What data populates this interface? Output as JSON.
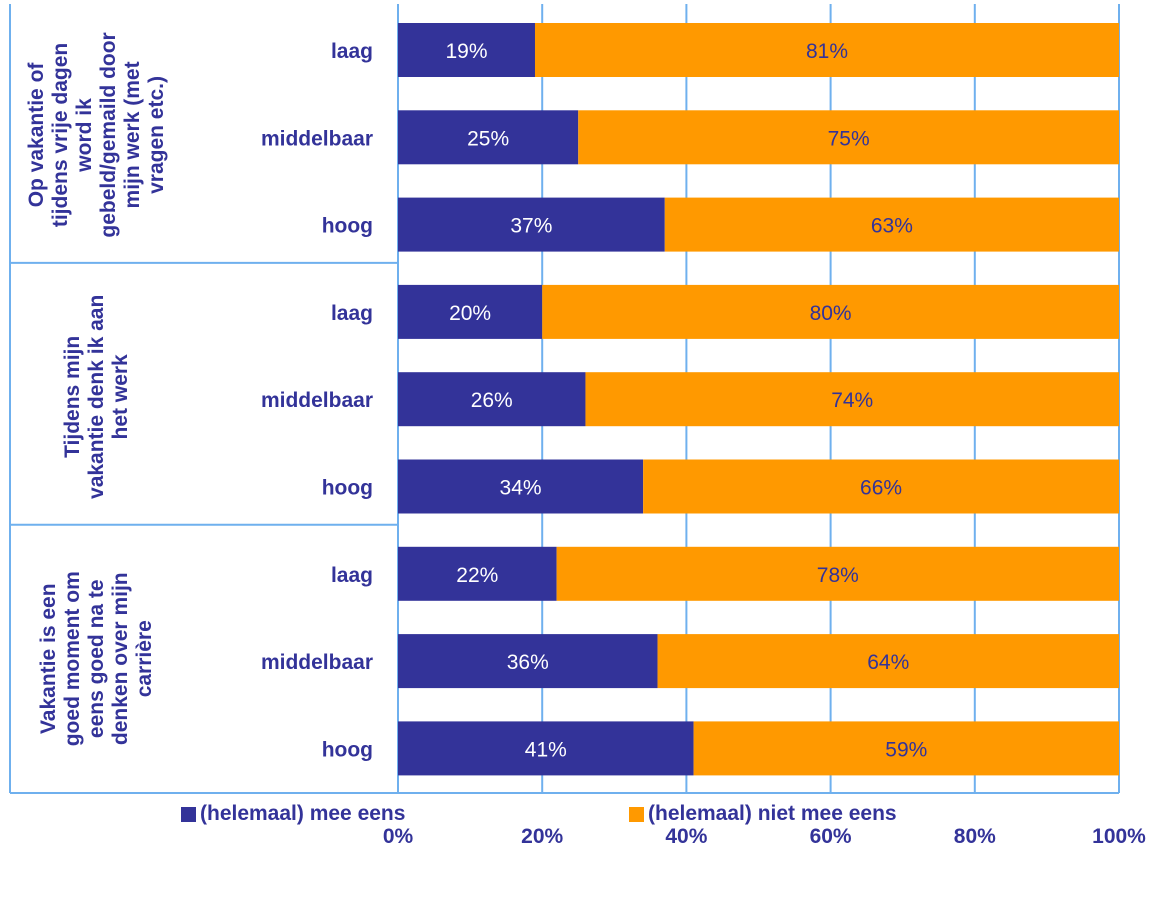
{
  "chart_data": {
    "type": "bar",
    "orientation": "horizontal",
    "stacked": true,
    "x_ticks": [
      "0%",
      "20%",
      "40%",
      "60%",
      "80%",
      "100%"
    ],
    "xlim": [
      0,
      100
    ],
    "grid": true,
    "legend_position": "bottom",
    "colors": {
      "agree": "#333399",
      "disagree": "#ff9900",
      "text_dark": "#333399",
      "text_light": "#ffffff"
    },
    "series": [
      {
        "name": "(helemaal) mee eens",
        "color": "#333399"
      },
      {
        "name": "(helemaal) niet mee eens",
        "color": "#ff9900"
      }
    ],
    "groups": [
      {
        "label_lines": [
          "Op vakantie of",
          "tijdens vrije dagen",
          "word ik",
          "gebeld/gemaild door",
          "mijn werk (met",
          "vragen etc.)"
        ],
        "bars": [
          {
            "category": "laag",
            "values": [
              19,
              81
            ],
            "labels": [
              "19%",
              "81%"
            ]
          },
          {
            "category": "middelbaar",
            "values": [
              25,
              75
            ],
            "labels": [
              "25%",
              "75%"
            ]
          },
          {
            "category": "hoog",
            "values": [
              37,
              63
            ],
            "labels": [
              "37%",
              "63%"
            ]
          }
        ]
      },
      {
        "label_lines": [
          "Tijdens mijn",
          "vakantie denk ik aan",
          "het werk"
        ],
        "bars": [
          {
            "category": "laag",
            "values": [
              20,
              80
            ],
            "labels": [
              "20%",
              "80%"
            ]
          },
          {
            "category": "middelbaar",
            "values": [
              26,
              74
            ],
            "labels": [
              "26%",
              "74%"
            ]
          },
          {
            "category": "hoog",
            "values": [
              34,
              66
            ],
            "labels": [
              "34%",
              "66%"
            ]
          }
        ]
      },
      {
        "label_lines": [
          "Vakantie is een",
          "goed moment om",
          "eens goed na te",
          "denken over mijn",
          "carrière"
        ],
        "bars": [
          {
            "category": "laag",
            "values": [
              22,
              78
            ],
            "labels": [
              "22%",
              "78%"
            ]
          },
          {
            "category": "middelbaar",
            "values": [
              36,
              64
            ],
            "labels": [
              "36%",
              "64%"
            ]
          },
          {
            "category": "hoog",
            "values": [
              41,
              59
            ],
            "labels": [
              "41%",
              "59%"
            ]
          }
        ]
      }
    ]
  }
}
